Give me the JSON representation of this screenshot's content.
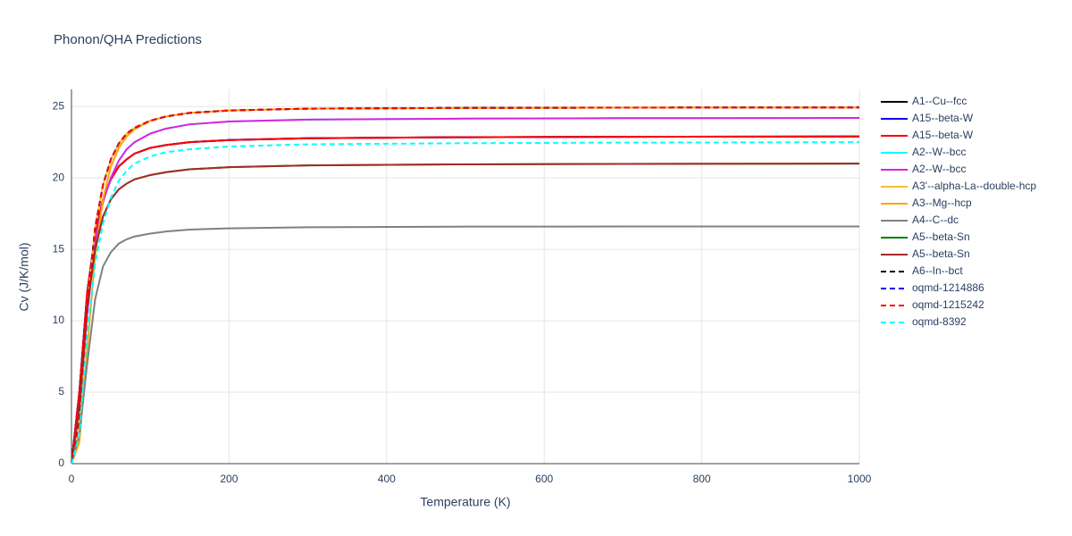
{
  "chart_data": {
    "type": "line",
    "title": "Phonon/QHA Predictions",
    "xlabel": "Temperature (K)",
    "ylabel": "Cv (J/K/mol)",
    "xlim": [
      0,
      1000
    ],
    "ylim": [
      0,
      26.2
    ],
    "xticks": [
      0,
      200,
      400,
      600,
      800,
      1000
    ],
    "yticks": [
      0,
      5,
      10,
      15,
      20,
      25
    ],
    "grid": true,
    "x": [
      0,
      10,
      20,
      30,
      40,
      50,
      60,
      70,
      80,
      100,
      120,
      150,
      200,
      300,
      500,
      700,
      1000
    ],
    "series": [
      {
        "name": "A1--Cu--fcc",
        "color": "#000000",
        "dash": false,
        "values": [
          0,
          5,
          12,
          16,
          18.5,
          19.9,
          20.8,
          21.3,
          21.7,
          22.1,
          22.3,
          22.5,
          22.65,
          22.78,
          22.85,
          22.88,
          22.9
        ]
      },
      {
        "name": "A15--beta-W",
        "color": "#0000ff",
        "dash": false,
        "values": [
          0,
          5,
          12,
          16,
          18.5,
          19.9,
          20.8,
          21.3,
          21.7,
          22.1,
          22.3,
          22.5,
          22.65,
          22.78,
          22.85,
          22.88,
          22.9
        ]
      },
      {
        "name": "A15--beta-W",
        "color": "#ff0000",
        "dash": false,
        "values": [
          0,
          5,
          12,
          16,
          18.5,
          19.9,
          20.8,
          21.3,
          21.7,
          22.1,
          22.3,
          22.5,
          22.65,
          22.78,
          22.85,
          22.88,
          22.9
        ]
      },
      {
        "name": "A2--W--bcc",
        "color": "#00ffff",
        "dash": false,
        "values": [
          0,
          3,
          10.5,
          15.5,
          18.3,
          20.0,
          21.2,
          22.0,
          22.5,
          23.1,
          23.45,
          23.75,
          23.95,
          24.08,
          24.15,
          24.18,
          24.2
        ]
      },
      {
        "name": "A2--W--bcc",
        "color": "#dd22dd",
        "dash": false,
        "values": [
          0,
          3,
          10.5,
          15.5,
          18.3,
          20.0,
          21.2,
          22.0,
          22.5,
          23.1,
          23.45,
          23.75,
          23.95,
          24.08,
          24.15,
          24.18,
          24.2
        ]
      },
      {
        "name": "A3'--alpha-La--double-hcp",
        "color": "#f2c12e",
        "dash": false,
        "values": [
          0,
          3,
          11,
          16.5,
          19.5,
          21.3,
          22.4,
          23.1,
          23.5,
          24.0,
          24.3,
          24.55,
          24.72,
          24.85,
          24.9,
          24.92,
          24.93
        ]
      },
      {
        "name": "A3--Mg--hcp",
        "color": "#ffa500",
        "dash": false,
        "values": [
          0,
          1.5,
          8,
          14.5,
          18.5,
          20.8,
          22.1,
          22.9,
          23.4,
          24.0,
          24.3,
          24.55,
          24.72,
          24.85,
          24.9,
          24.92,
          24.93
        ]
      },
      {
        "name": "A4--C--dc",
        "color": "#808080",
        "dash": false,
        "values": [
          0,
          2,
          7,
          11.5,
          13.8,
          14.8,
          15.4,
          15.7,
          15.9,
          16.1,
          16.25,
          16.38,
          16.47,
          16.55,
          16.59,
          16.6,
          16.6
        ]
      },
      {
        "name": "A5--beta-Sn",
        "color": "#008000",
        "dash": false,
        "values": [
          0,
          4,
          11,
          15,
          17.3,
          18.5,
          19.2,
          19.6,
          19.9,
          20.2,
          20.4,
          20.6,
          20.75,
          20.88,
          20.95,
          20.98,
          21.0
        ]
      },
      {
        "name": "A5--beta-Sn",
        "color": "#a52a2a",
        "dash": false,
        "values": [
          0,
          4,
          11,
          15,
          17.3,
          18.5,
          19.2,
          19.6,
          19.9,
          20.2,
          20.4,
          20.6,
          20.75,
          20.88,
          20.95,
          20.98,
          21.0
        ]
      },
      {
        "name": "A6--In--bct",
        "color": "#000000",
        "dash": true,
        "values": [
          0,
          3,
          11,
          16.5,
          19.5,
          21.3,
          22.4,
          23.1,
          23.5,
          24.0,
          24.3,
          24.55,
          24.72,
          24.85,
          24.9,
          24.92,
          24.93
        ]
      },
      {
        "name": "oqmd-1214886",
        "color": "#0000ff",
        "dash": true,
        "values": [
          0,
          3,
          11,
          16.5,
          19.5,
          21.3,
          22.4,
          23.1,
          23.5,
          24.0,
          24.3,
          24.55,
          24.72,
          24.85,
          24.9,
          24.92,
          24.93
        ]
      },
      {
        "name": "oqmd-1215242",
        "color": "#ff0000",
        "dash": true,
        "values": [
          0,
          3,
          11,
          16.5,
          19.5,
          21.3,
          22.4,
          23.1,
          23.5,
          24.0,
          24.3,
          24.55,
          24.72,
          24.85,
          24.9,
          24.92,
          24.93
        ]
      },
      {
        "name": "oqmd-8392",
        "color": "#00ffff",
        "dash": true,
        "values": [
          0,
          2,
          9,
          14,
          16.8,
          18.6,
          19.8,
          20.5,
          21.0,
          21.5,
          21.8,
          22.0,
          22.2,
          22.35,
          22.43,
          22.47,
          22.5
        ]
      }
    ]
  }
}
